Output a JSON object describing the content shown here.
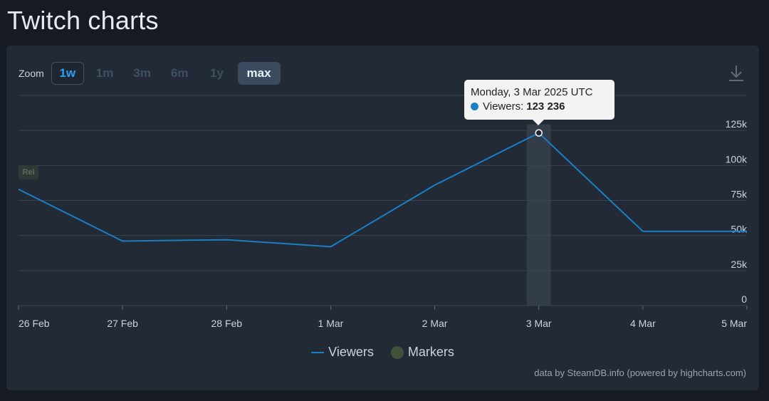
{
  "page": {
    "title": "Twitch charts"
  },
  "zoom": {
    "label": "Zoom",
    "options": [
      "1w",
      "1m",
      "3m",
      "6m",
      "1y",
      "max"
    ],
    "active": "1w"
  },
  "icons": {
    "download": "download-icon"
  },
  "chart_data": {
    "type": "line",
    "title": "",
    "xlabel": "",
    "ylabel": "",
    "categories": [
      "26 Feb",
      "27 Feb",
      "28 Feb",
      "1 Mar",
      "2 Mar",
      "3 Mar",
      "4 Mar",
      "5 Mar"
    ],
    "series": [
      {
        "name": "Viewers",
        "color": "#1b7fc4",
        "values": [
          83000,
          46000,
          47000,
          42000,
          86000,
          123236,
          53000,
          53000
        ]
      }
    ],
    "yticks": [
      0,
      25000,
      50000,
      75000,
      100000,
      125000
    ],
    "ytick_labels": [
      "0",
      "25k",
      "50k",
      "75k",
      "100k",
      "125k"
    ],
    "ylim": [
      0,
      150000
    ],
    "grid": true,
    "legend": [
      "Viewers",
      "Markers"
    ],
    "legend_position": "bottom-center",
    "marker_flag": "Rel",
    "tooltip": {
      "date": "Monday, 3 Mar 2025 UTC",
      "label": "Viewers:",
      "value": "123 236",
      "index": 5
    }
  },
  "legend": {
    "viewers": "Viewers",
    "markers": "Markers"
  },
  "credits": "data by SteamDB.info (powered by highcharts.com)",
  "colors": {
    "line": "#1b7fc4",
    "highlight": "#3a4350",
    "grid": "#3a4350",
    "marker": "#3f5138"
  }
}
